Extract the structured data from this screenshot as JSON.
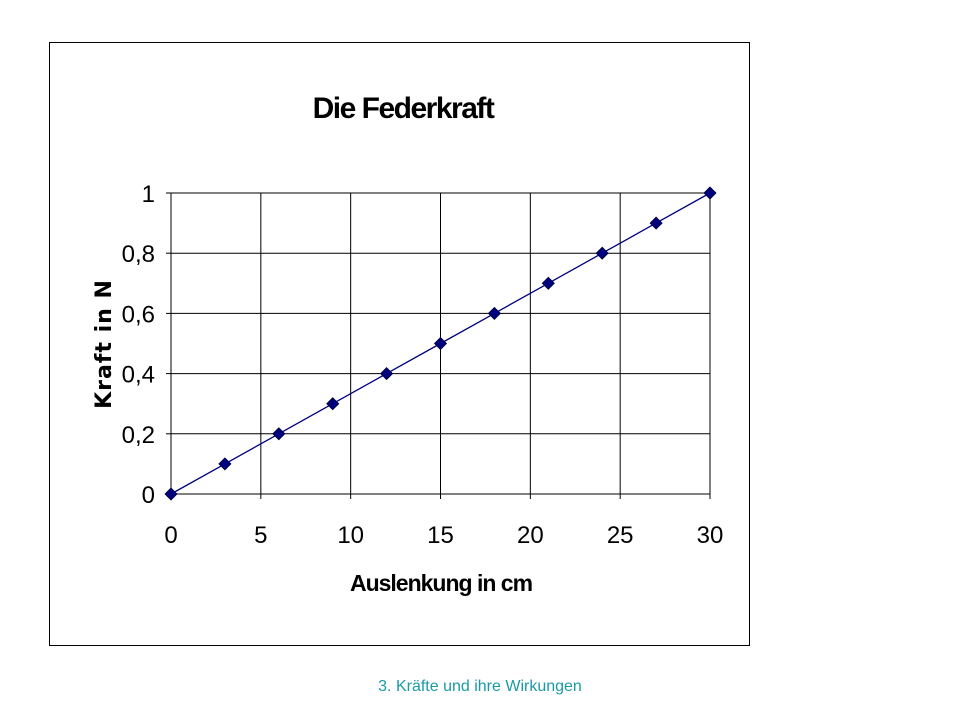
{
  "chart_data": {
    "type": "line",
    "title": "Die Federkraft",
    "xlabel": "Auslenkung in cm",
    "ylabel": "Kraft in N",
    "x": [
      0,
      3,
      6,
      9,
      12,
      15,
      18,
      21,
      24,
      27,
      30
    ],
    "series": [
      {
        "values": [
          0,
          0.1,
          0.2,
          0.3,
          0.4,
          0.5,
          0.6,
          0.7,
          0.8,
          0.9,
          1.0
        ]
      }
    ],
    "xlim": [
      0,
      30
    ],
    "ylim": [
      0,
      1
    ],
    "x_ticks": [
      "0",
      "5",
      "10",
      "15",
      "20",
      "25",
      "30"
    ],
    "y_ticks": [
      "0",
      "0,2",
      "0,4",
      "0,6",
      "0,8",
      "1"
    ],
    "grid": true,
    "legend": "none",
    "colors": {
      "line": "#00007f",
      "marker": "#00007f",
      "grid": "#000000"
    }
  },
  "footer": {
    "caption": "3. Kräfte und ihre Wirkungen"
  }
}
